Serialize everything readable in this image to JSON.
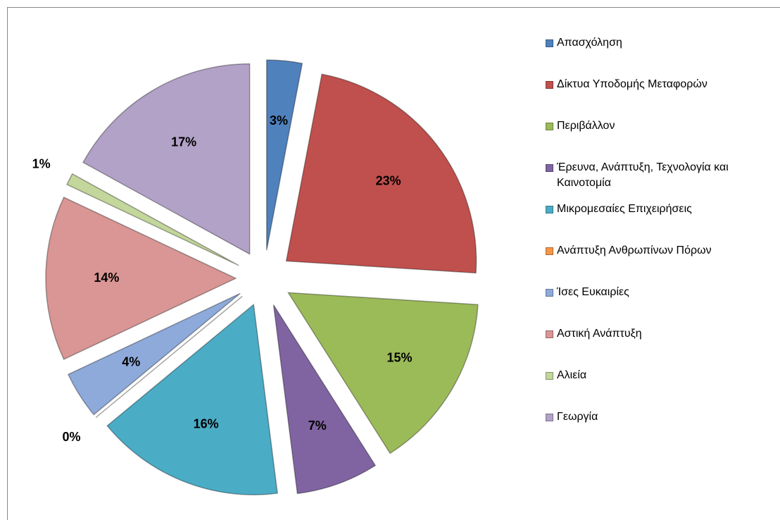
{
  "chart_data": {
    "type": "pie",
    "categories": [
      "Απασχόληση",
      "Δίκτυα Υποδομής Μεταφορών",
      "Περιβάλλον",
      "Έρευνα, Ανάπτυξη, Τεχνολογία και Καινοτομία",
      "Μικρομεσαίες Επιχειρήσεις",
      "Ανάπτυξη Ανθρωπίνων Πόρων",
      "Ίσες Ευκαιρίες",
      "Αστική Ανάπτυξη",
      "Αλιεία",
      "Γεωργία"
    ],
    "values": [
      3,
      23,
      15,
      7,
      16,
      0,
      4,
      14,
      1,
      17
    ],
    "value_labels": [
      "3%",
      "23%",
      "15%",
      "7%",
      "16%",
      "0%",
      "4%",
      "14%",
      "1%",
      "17%"
    ],
    "colors": [
      "#4f81bd",
      "#c0504d",
      "#9bbb59",
      "#8064a2",
      "#4bacc6",
      "#f79646",
      "#8eaadb",
      "#d99694",
      "#c3d69b",
      "#b3a2c7"
    ],
    "legend": "right"
  }
}
